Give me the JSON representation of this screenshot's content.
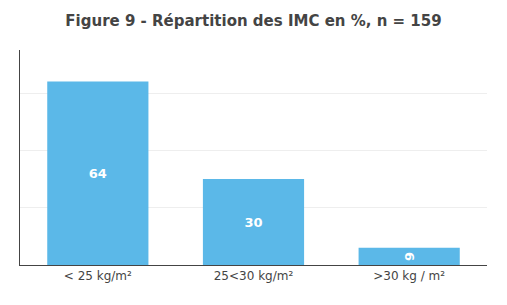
{
  "chart_data": {
    "type": "bar",
    "title": "Figure 9 - Répartition des IMC en %, n = 159",
    "categories": [
      "< 25 kg/m²",
      "25<30 kg/m²",
      ">30 kg / m²"
    ],
    "values": [
      64,
      30,
      6
    ],
    "color": "#5BB8E8",
    "ylim": [
      0,
      75
    ],
    "yticks": [
      20,
      40,
      60
    ],
    "grid": true,
    "data_labels": true,
    "tick_labels": "x"
  }
}
